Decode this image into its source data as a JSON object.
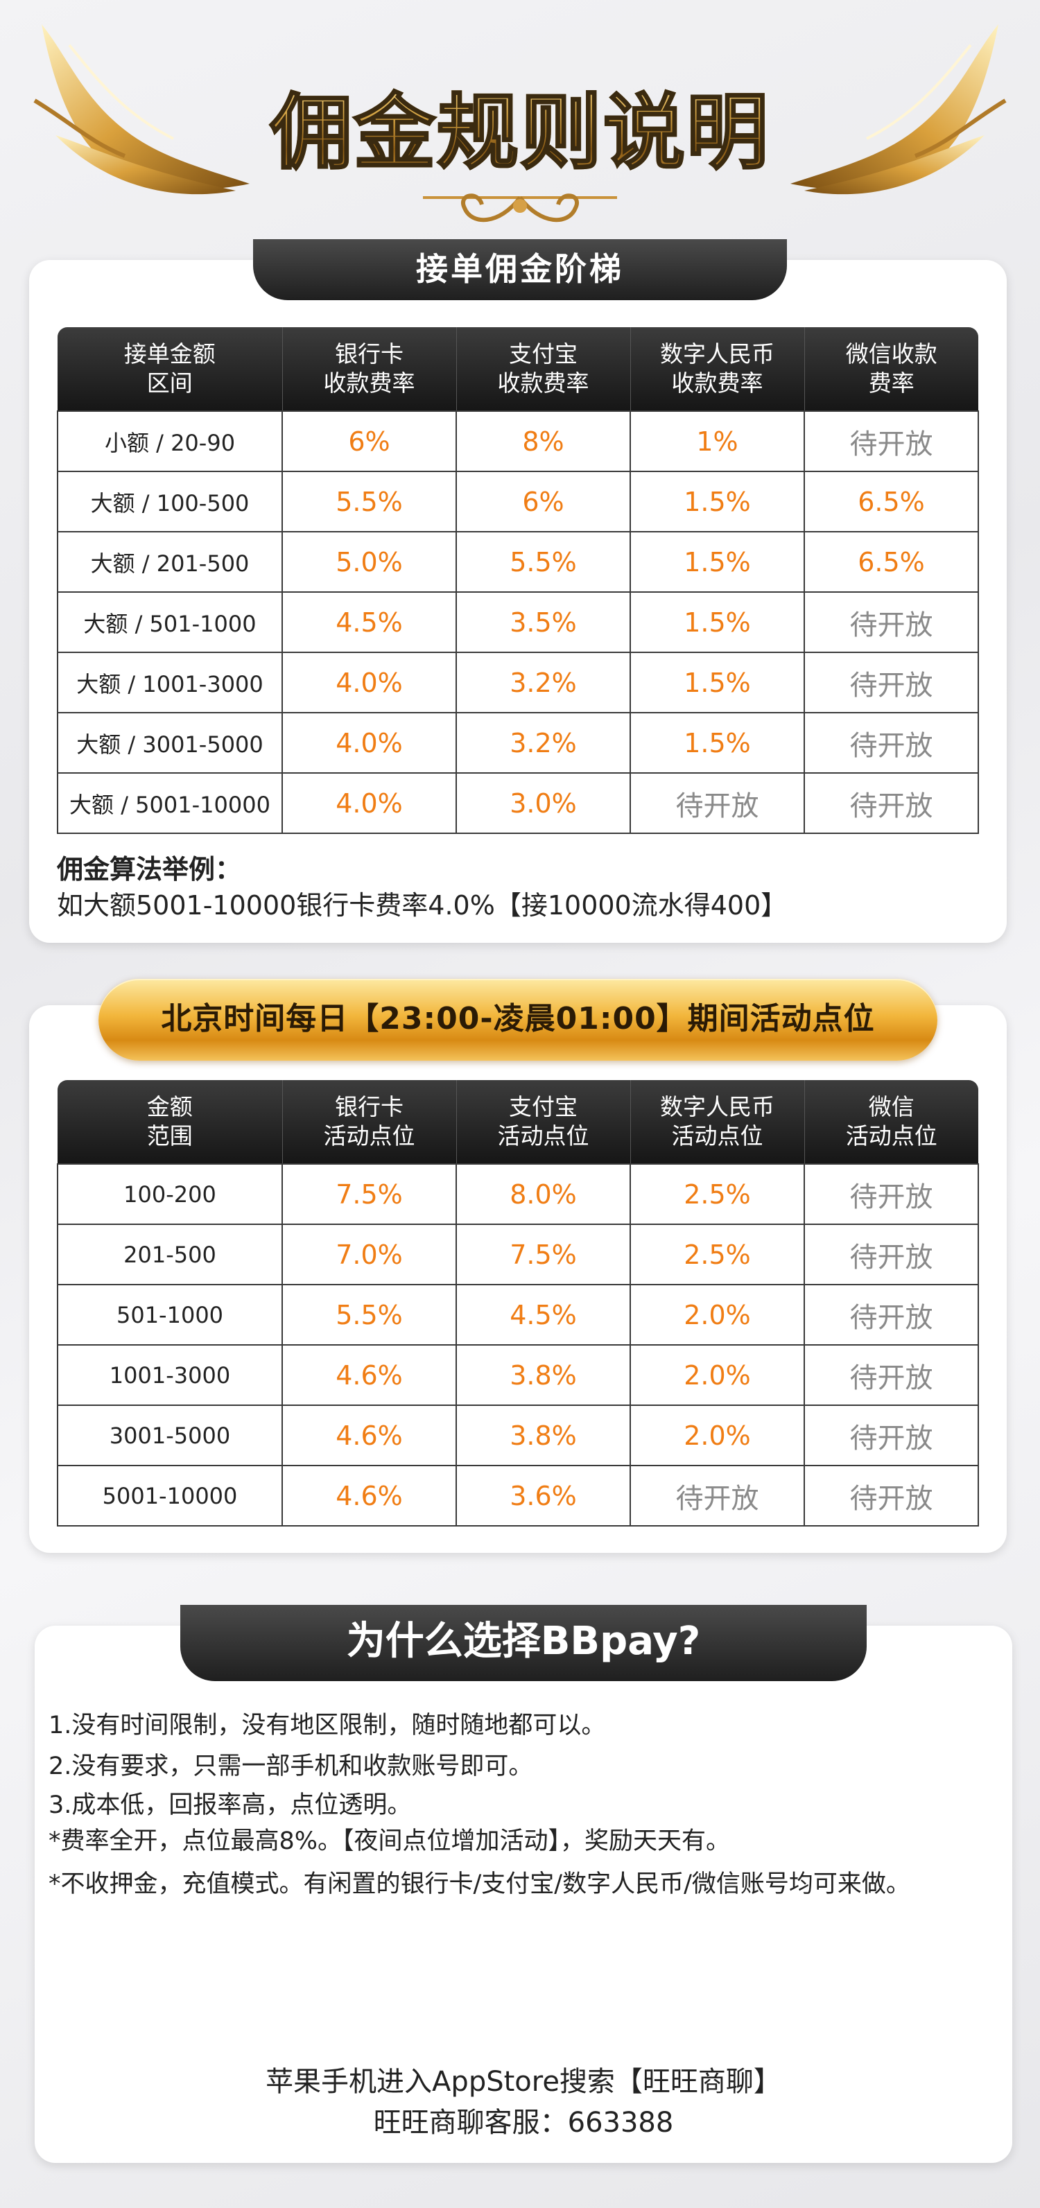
{
  "page": {
    "title": "佣金规则说明"
  },
  "section1": {
    "title": "接单佣金阶梯",
    "headers": [
      "接单金额\n区间",
      "银行卡\n收款费率",
      "支付宝\n收款费率",
      "数字人民币\n收款费率",
      "微信收款\n费率"
    ],
    "rows": [
      [
        "小额 / 20-90",
        "6%",
        "8%",
        "1%",
        "待开放"
      ],
      [
        "大额 / 100-500",
        "5.5%",
        "6%",
        "1.5%",
        "6.5%"
      ],
      [
        "大额 / 201-500",
        "5.0%",
        "5.5%",
        "1.5%",
        "6.5%"
      ],
      [
        "大额 / 501-1000",
        "4.5%",
        "3.5%",
        "1.5%",
        "待开放"
      ],
      [
        "大额 / 1001-3000",
        "4.0%",
        "3.2%",
        "1.5%",
        "待开放"
      ],
      [
        "大额 / 3001-5000",
        "4.0%",
        "3.2%",
        "1.5%",
        "待开放"
      ],
      [
        "大额 / 5001-10000",
        "4.0%",
        "3.0%",
        "待开放",
        "待开放"
      ]
    ],
    "example_label": "佣金算法举例：",
    "example_text": "如大额5001-10000银行卡费率4.0%【接10000流水得400】"
  },
  "section2": {
    "banner": "北京时间每日【23:00-凌晨01:00】期间活动点位",
    "headers": [
      "金额\n范围",
      "银行卡\n活动点位",
      "支付宝\n活动点位",
      "数字人民币\n活动点位",
      "微信\n活动点位"
    ],
    "rows": [
      [
        "100-200",
        "7.5%",
        "8.0%",
        "2.5%",
        "待开放"
      ],
      [
        "201-500",
        "7.0%",
        "7.5%",
        "2.5%",
        "待开放"
      ],
      [
        "501-1000",
        "5.5%",
        "4.5%",
        "2.0%",
        "待开放"
      ],
      [
        "1001-3000",
        "4.6%",
        "3.8%",
        "2.0%",
        "待开放"
      ],
      [
        "3001-5000",
        "4.6%",
        "3.8%",
        "2.0%",
        "待开放"
      ],
      [
        "5001-10000",
        "4.6%",
        "3.6%",
        "待开放",
        "待开放"
      ]
    ]
  },
  "section3": {
    "title": "为什么选择BBpay?",
    "points": [
      "1.没有时间限制，没有地区限制，随时随地都可以。",
      "2.没有要求，只需一部手机和收款账号即可。",
      "3.成本低，回报率高，点位透明。",
      "*费率全开，点位最高8%。【夜间点位增加活动】，奖励天天有。",
      "*不收押金，充值模式。有闲置的银行卡/支付宝/数字人民币/微信账号均可来做。"
    ],
    "footer_line1": "苹果手机进入AppStore搜索【旺旺商聊】",
    "footer_line2": "旺旺商聊客服：663388"
  },
  "colors": {
    "rate_orange": "#f07d14",
    "pending_gray": "#8a8a8a",
    "header_dark": "#1f1f1f",
    "gold": "#f2b63c"
  },
  "icons": {
    "wings": "gold-wing-icon",
    "ornament": "gold-scroll-ornament-icon"
  }
}
